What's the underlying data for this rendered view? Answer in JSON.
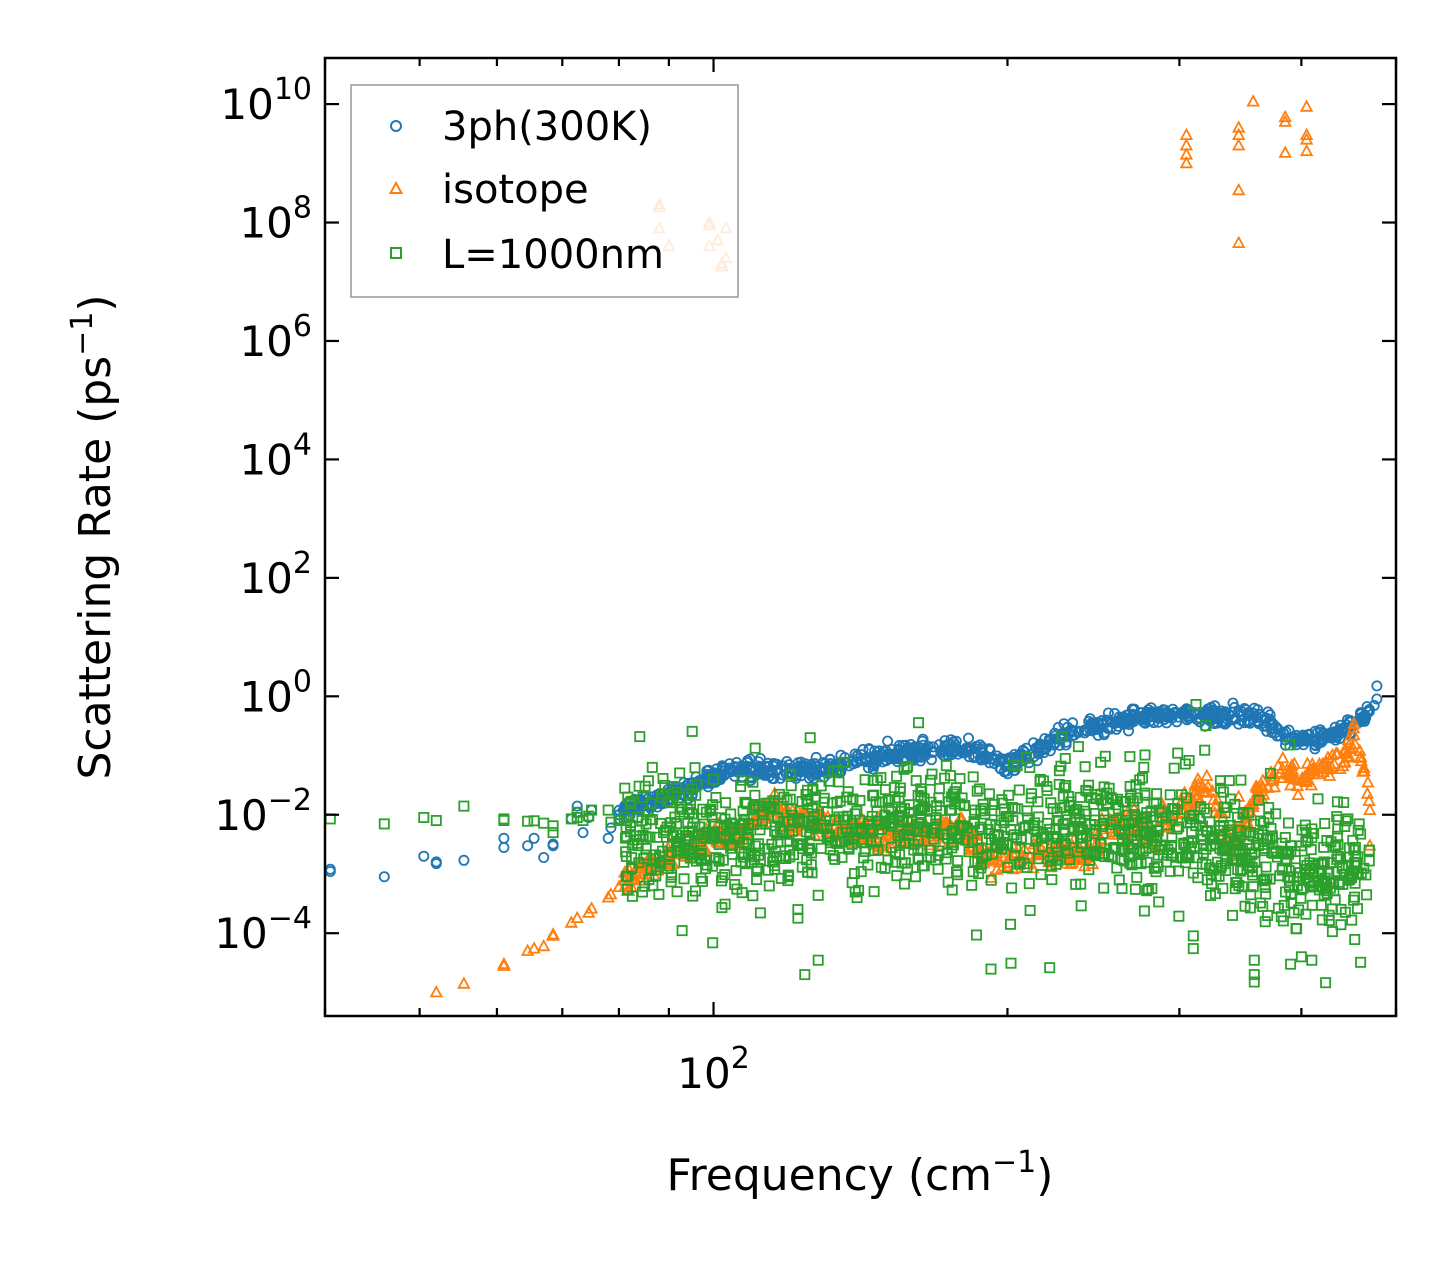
{
  "chart_data": {
    "type": "scatter",
    "title": "",
    "xlabel": {
      "main": "Frequency (cm",
      "sup": "−1",
      "tail": ")"
    },
    "ylabel": {
      "main": "Scattering Rate (ps",
      "sup": "−1",
      "tail": ")"
    },
    "x_scale": "log",
    "y_scale": "log",
    "xlim": [
      40,
      500
    ],
    "ylim": [
      4e-06,
      60000000000.0
    ],
    "x_tick_labels": [
      {
        "value": 100,
        "base": "10",
        "exp": "2"
      }
    ],
    "y_tick_labels": [
      {
        "value": 0.0001,
        "base": "10",
        "exp": "−4"
      },
      {
        "value": 0.01,
        "base": "10",
        "exp": "−2"
      },
      {
        "value": 1.0,
        "base": "10",
        "exp": "0"
      },
      {
        "value": 100.0,
        "base": "10",
        "exp": "2"
      },
      {
        "value": 10000.0,
        "base": "10",
        "exp": "4"
      },
      {
        "value": 1000000.0,
        "base": "10",
        "exp": "6"
      },
      {
        "value": 100000000.0,
        "base": "10",
        "exp": "8"
      },
      {
        "value": 10000000000.0,
        "base": "10",
        "exp": "10"
      }
    ],
    "legend_position": "top-left",
    "series": [
      {
        "name": "3ph(300K)",
        "marker": "circle",
        "color": "#1f77b4",
        "scattered_points": [
          [
            40.5,
            0.0012
          ],
          [
            40.5,
            0.0011
          ],
          [
            46,
            0.0009
          ],
          [
            50.5,
            0.002
          ],
          [
            52,
            0.0016
          ],
          [
            52,
            0.0015
          ],
          [
            55.5,
            0.0017
          ],
          [
            61,
            0.004
          ],
          [
            61,
            0.0028
          ],
          [
            64.5,
            0.003
          ],
          [
            65.5,
            0.004
          ],
          [
            67,
            0.0019
          ],
          [
            68.5,
            0.003
          ],
          [
            68.5,
            0.0032
          ],
          [
            71.5,
            0.0085
          ],
          [
            72.5,
            0.011
          ],
          [
            72.5,
            0.014
          ],
          [
            73.5,
            0.005
          ],
          [
            74.5,
            0.009
          ],
          [
            75,
            0.012
          ],
          [
            78,
            0.004
          ],
          [
            78.5,
            0.006
          ],
          [
            80,
            0.01
          ],
          [
            81,
            0.013
          ]
        ],
        "trend": [
          [
            80,
            0.012
          ],
          [
            88,
            0.018
          ],
          [
            95,
            0.03
          ],
          [
            105,
            0.06
          ],
          [
            115,
            0.055
          ],
          [
            130,
            0.06
          ],
          [
            150,
            0.1
          ],
          [
            175,
            0.14
          ],
          [
            185,
            0.12
          ],
          [
            200,
            0.07
          ],
          [
            215,
            0.12
          ],
          [
            230,
            0.25
          ],
          [
            255,
            0.35
          ],
          [
            275,
            0.45
          ],
          [
            300,
            0.5
          ],
          [
            330,
            0.45
          ],
          [
            360,
            0.5
          ],
          [
            380,
            0.25
          ],
          [
            400,
            0.18
          ],
          [
            420,
            0.2
          ],
          [
            450,
            0.3
          ],
          [
            470,
            0.6
          ]
        ],
        "band_spread_decades": 0.08,
        "density": 900,
        "outliers": [
          [
            478,
            1.5
          ],
          [
            478,
            0.9
          ],
          [
            475,
            0.7
          ]
        ]
      },
      {
        "name": "isotope",
        "marker": "triangle",
        "color": "#ff7f0e",
        "scattered_points": [
          [
            88,
            180000000.0
          ],
          [
            88,
            200000000.0
          ],
          [
            88,
            80000000.0
          ],
          [
            90,
            40000000.0
          ],
          [
            99,
            100000000.0
          ],
          [
            99,
            40000000.0
          ],
          [
            101,
            50000000.0
          ],
          [
            102,
            20000000.0
          ],
          [
            103,
            25000000.0
          ],
          [
            103,
            80000000.0
          ],
          [
            99,
            90000000.0
          ],
          [
            102,
            18000000.0
          ],
          [
            305,
            3000000000.0
          ],
          [
            305,
            2000000000.0
          ],
          [
            305,
            1400000000.0
          ],
          [
            305,
            1000000000.0
          ],
          [
            345,
            4000000000.0
          ],
          [
            345,
            3000000000.0
          ],
          [
            345,
            2000000000.0
          ],
          [
            345,
            350000000.0
          ],
          [
            345,
            45000000.0
          ],
          [
            357,
            11000000000.0
          ],
          [
            385,
            6000000000.0
          ],
          [
            385,
            5000000000.0
          ],
          [
            385,
            1500000000.0
          ],
          [
            405,
            3000000000.0
          ],
          [
            405,
            2500000000.0
          ],
          [
            405,
            9000000000.0
          ],
          [
            405,
            1600000000.0
          ],
          [
            52,
            1e-05
          ],
          [
            55.5,
            1.4e-05
          ],
          [
            61,
            3e-05
          ],
          [
            61,
            2.8e-05
          ],
          [
            64.5,
            5e-05
          ],
          [
            65.5,
            5.5e-05
          ],
          [
            67,
            6e-05
          ],
          [
            68.5,
            9e-05
          ],
          [
            68.5,
            9.5e-05
          ],
          [
            71.5,
            0.00015
          ],
          [
            72.5,
            0.00018
          ],
          [
            74.5,
            0.00022
          ],
          [
            75,
            0.00026
          ],
          [
            78,
            0.0004
          ],
          [
            78.5,
            0.00045
          ],
          [
            80,
            0.0006
          ],
          [
            81,
            0.0008
          ]
        ],
        "trend": [
          [
            81,
            0.0008
          ],
          [
            85,
            0.0012
          ],
          [
            90,
            0.002
          ],
          [
            95,
            0.003
          ],
          [
            100,
            0.004
          ],
          [
            105,
            0.004
          ],
          [
            110,
            0.008
          ],
          [
            115,
            0.015
          ],
          [
            120,
            0.01
          ],
          [
            130,
            0.006
          ],
          [
            145,
            0.005
          ],
          [
            160,
            0.005
          ],
          [
            180,
            0.006
          ],
          [
            190,
            0.0015
          ],
          [
            205,
            0.002
          ],
          [
            225,
            0.0025
          ],
          [
            240,
            0.002
          ],
          [
            260,
            0.008
          ],
          [
            280,
            0.004
          ],
          [
            295,
            0.01
          ],
          [
            320,
            0.03
          ],
          [
            340,
            0.003
          ],
          [
            360,
            0.02
          ],
          [
            380,
            0.06
          ],
          [
            400,
            0.04
          ],
          [
            420,
            0.06
          ],
          [
            440,
            0.1
          ],
          [
            455,
            0.2
          ],
          [
            470,
            0.02
          ]
        ],
        "band_spread_decades": 0.12,
        "density": 700,
        "outliers": [
          [
            470,
            0.012
          ],
          [
            470,
            0.003
          ],
          [
            345,
            0.02
          ],
          [
            320,
            0.045
          ]
        ]
      },
      {
        "name": "L=1000nm",
        "marker": "square",
        "color": "#2ca02c",
        "scattered_points": [
          [
            40.5,
            0.0085
          ],
          [
            46,
            0.007
          ],
          [
            50.5,
            0.009
          ],
          [
            52,
            0.008
          ],
          [
            55.5,
            0.014
          ],
          [
            61,
            0.0085
          ],
          [
            61,
            0.008
          ],
          [
            64.5,
            0.0078
          ],
          [
            65.5,
            0.0079
          ],
          [
            67,
            0.0072
          ],
          [
            68.5,
            0.0065
          ],
          [
            68.5,
            0.005
          ],
          [
            71.5,
            0.0085
          ],
          [
            72.5,
            0.009
          ],
          [
            72.5,
            0.011
          ],
          [
            73.5,
            0.008
          ],
          [
            74.5,
            0.0095
          ],
          [
            75,
            0.012
          ],
          [
            78,
            0.012
          ],
          [
            78.5,
            0.0075
          ],
          [
            80,
            0.008
          ],
          [
            81,
            0.009
          ],
          [
            124,
            2e-05
          ],
          [
            128,
            3.5e-05
          ],
          [
            122,
            0.00025
          ],
          [
            122,
            0.00018
          ],
          [
            310,
            9e-05
          ],
          [
            310,
            5.5e-05
          ],
          [
            358,
            3.5e-05
          ],
          [
            358,
            2e-05
          ],
          [
            358,
            1.5e-05
          ],
          [
            390,
            3e-05
          ],
          [
            400,
            4e-05
          ],
          [
            410,
            3.5e-05
          ],
          [
            395,
            0.00012
          ],
          [
            340,
            0.0002
          ]
        ],
        "trend": [
          [
            81,
            0.005
          ],
          [
            100,
            0.004
          ],
          [
            120,
            0.005
          ],
          [
            140,
            0.006
          ],
          [
            160,
            0.007
          ],
          [
            180,
            0.006
          ],
          [
            200,
            0.005
          ],
          [
            230,
            0.007
          ],
          [
            260,
            0.006
          ],
          [
            290,
            0.005
          ],
          [
            320,
            0.004
          ],
          [
            350,
            0.003
          ],
          [
            380,
            0.0015
          ],
          [
            420,
            0.001
          ],
          [
            470,
            0.001
          ]
        ],
        "band_spread_decades": 0.45,
        "density": 1300,
        "outliers": []
      }
    ]
  }
}
